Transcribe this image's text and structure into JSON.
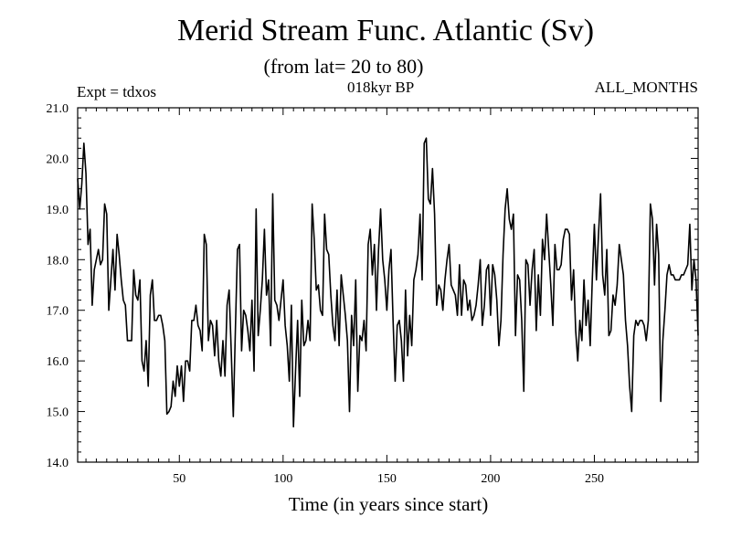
{
  "chart_data": {
    "type": "line",
    "title": "Merid Stream Func. Atlantic (Sv)",
    "subtitle": "(from lat= 20 to 80)",
    "experiment_label": "Expt = tdxos",
    "period_label": "018kyr BP",
    "season_label": "ALL_MONTHS",
    "xlabel": "Time (in years since start)",
    "ylabel": "",
    "xlim": [
      1,
      300
    ],
    "ylim": [
      14.0,
      21.0
    ],
    "x_ticks": [
      50,
      100,
      150,
      200,
      250
    ],
    "x_tick_labels": [
      "50",
      "100",
      "150",
      "200",
      "250"
    ],
    "y_ticks": [
      14.0,
      15.0,
      16.0,
      17.0,
      18.0,
      19.0,
      20.0,
      21.0
    ],
    "y_tick_labels": [
      "14.0",
      "15.0",
      "16.0",
      "17.0",
      "18.0",
      "19.0",
      "20.0",
      "21.0"
    ],
    "grid": false,
    "line_color": "#000000",
    "series": [
      {
        "x_start": 1,
        "x_step": 1,
        "values": [
          19.6,
          19.0,
          19.5,
          20.3,
          19.7,
          18.3,
          18.6,
          17.1,
          17.8,
          18.0,
          18.2,
          17.9,
          18.0,
          19.1,
          18.9,
          17.0,
          17.6,
          18.2,
          17.4,
          18.5,
          18.1,
          17.6,
          17.2,
          17.1,
          16.4,
          16.4,
          16.4,
          17.8,
          17.3,
          17.2,
          17.6,
          16.0,
          15.8,
          16.4,
          15.5,
          17.3,
          17.6,
          16.8,
          16.8,
          16.9,
          16.9,
          16.7,
          16.4,
          14.95,
          15.0,
          15.1,
          15.6,
          15.3,
          15.9,
          15.5,
          15.9,
          15.2,
          16.0,
          16.0,
          15.8,
          16.8,
          16.8,
          17.1,
          16.7,
          16.6,
          16.2,
          18.5,
          18.3,
          16.4,
          16.8,
          16.7,
          16.1,
          16.8,
          16.0,
          15.7,
          16.4,
          15.7,
          17.1,
          17.4,
          16.2,
          14.9,
          16.6,
          18.2,
          18.3,
          16.2,
          17.0,
          16.9,
          16.6,
          16.2,
          17.2,
          15.8,
          19.0,
          16.5,
          17.0,
          17.6,
          18.6,
          17.3,
          17.6,
          16.3,
          19.3,
          17.2,
          17.1,
          16.8,
          17.2,
          17.6,
          16.7,
          16.3,
          15.6,
          17.1,
          14.7,
          15.8,
          16.8,
          15.3,
          17.2,
          16.3,
          16.4,
          16.8,
          16.4,
          19.1,
          18.4,
          17.4,
          17.5,
          17.0,
          16.9,
          18.9,
          18.2,
          18.1,
          17.3,
          16.7,
          16.4,
          17.4,
          16.3,
          17.7,
          17.3,
          16.9,
          16.4,
          15.0,
          16.9,
          16.3,
          17.6,
          15.4,
          16.5,
          16.4,
          16.8,
          16.2,
          18.3,
          18.6,
          17.7,
          18.3,
          17.0,
          18.2,
          19.0,
          18.0,
          17.6,
          17.0,
          17.8,
          18.2,
          16.8,
          15.6,
          16.7,
          16.8,
          16.4,
          15.6,
          17.4,
          16.1,
          16.9,
          16.3,
          17.6,
          17.8,
          18.1,
          18.9,
          17.6,
          20.3,
          20.4,
          19.2,
          19.1,
          19.8,
          18.9,
          17.1,
          17.5,
          17.4,
          17.0,
          17.6,
          18.0,
          18.3,
          17.5,
          17.4,
          17.3,
          16.9,
          17.9,
          16.9,
          17.6,
          17.5,
          17.0,
          17.2,
          16.8,
          16.9,
          17.1,
          17.5,
          18.0,
          16.7,
          17.1,
          17.8,
          17.9,
          16.9,
          17.9,
          17.7,
          17.2,
          16.3,
          16.8,
          18.1,
          19.0,
          19.4,
          18.8,
          18.6,
          18.9,
          16.5,
          17.7,
          17.6,
          16.8,
          15.4,
          18.0,
          17.9,
          17.1,
          17.8,
          18.2,
          16.6,
          17.7,
          16.9,
          18.4,
          18.0,
          18.9,
          18.2,
          17.5,
          16.7,
          18.3,
          17.8,
          17.8,
          17.9,
          18.4,
          18.6,
          18.6,
          18.5,
          17.2,
          17.8,
          16.6,
          16.0,
          16.8,
          16.4,
          17.6,
          16.7,
          17.2,
          16.3,
          17.6,
          18.7,
          17.6,
          18.5,
          19.3,
          17.7,
          17.3,
          18.2,
          16.5,
          16.6,
          17.3,
          17.1,
          17.5,
          18.3,
          18.0,
          17.7,
          16.8,
          16.3,
          15.5,
          15.0,
          16.5,
          16.8,
          16.7,
          16.8,
          16.8,
          16.7,
          16.4,
          16.8,
          19.1,
          18.8,
          17.5,
          18.7,
          18.1,
          15.2,
          16.4,
          17.0,
          17.7,
          17.9,
          17.7,
          17.7,
          17.6,
          17.6,
          17.6,
          17.7,
          17.7,
          17.8,
          17.9,
          18.7,
          17.4,
          18.0,
          17.6,
          16.5
        ]
      }
    ]
  }
}
